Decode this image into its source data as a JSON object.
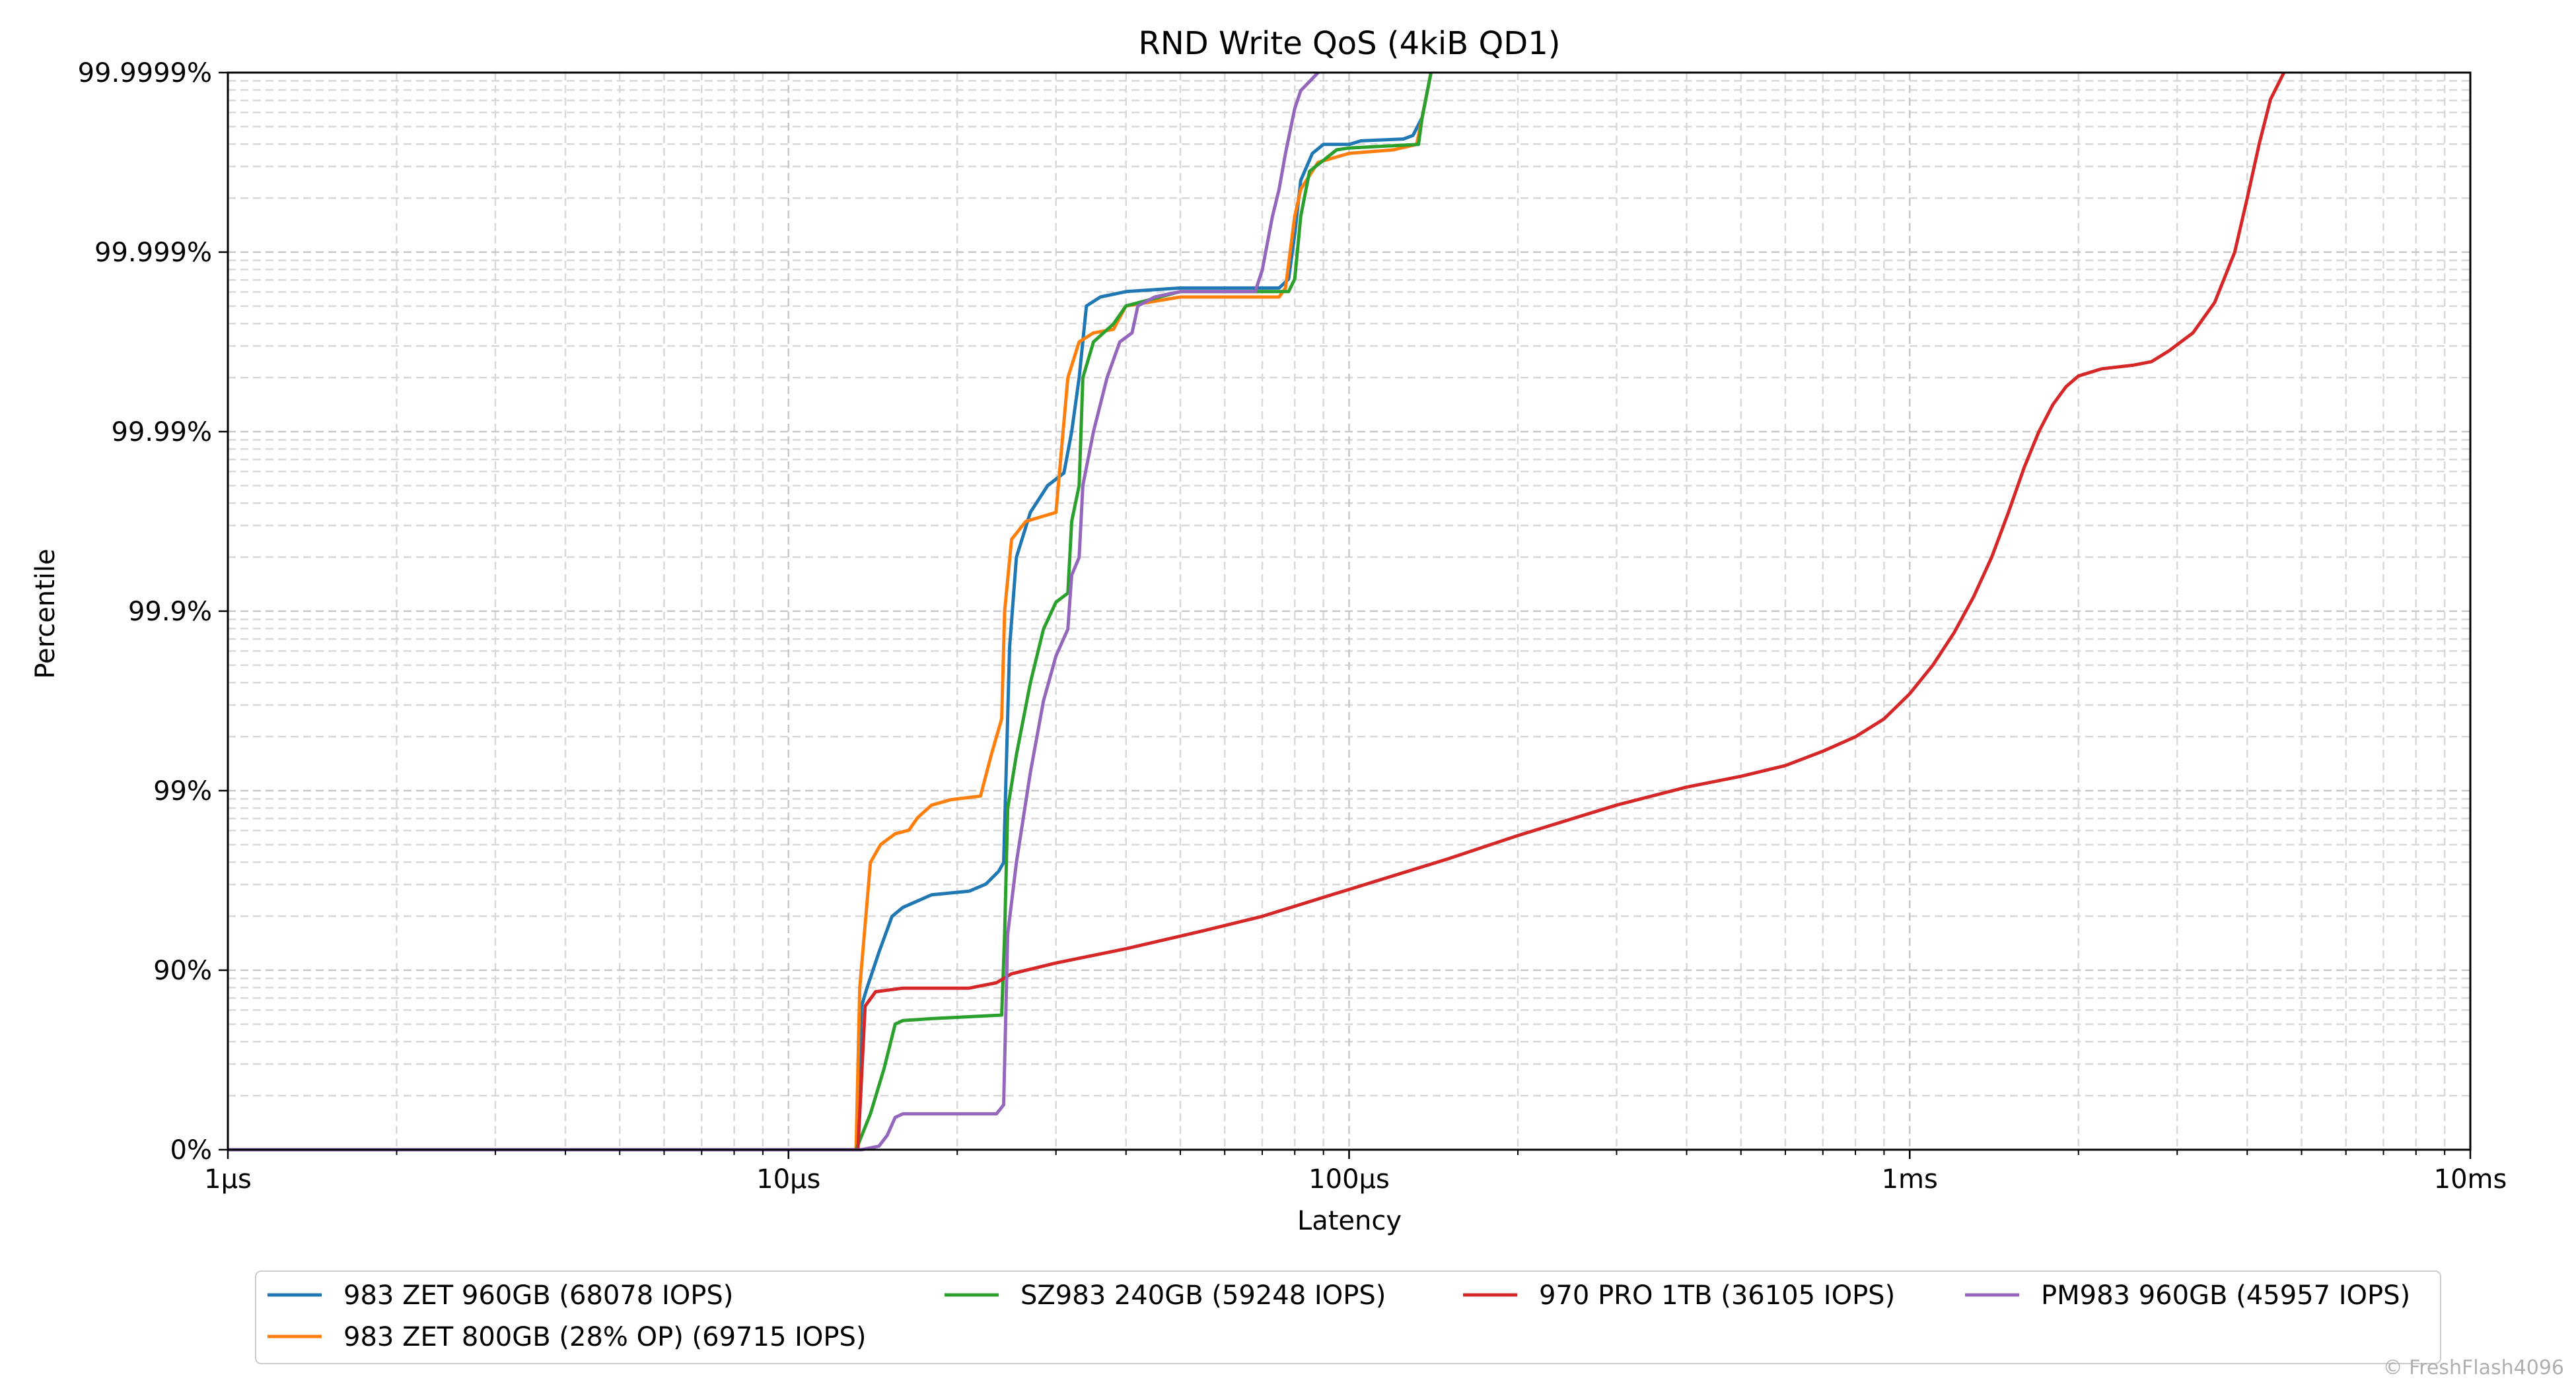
{
  "chart_data": {
    "type": "line",
    "title": "RND Write QoS (4kiB QD1)",
    "xlabel": "Latency",
    "ylabel": "Percentile",
    "x_scale": "log",
    "y_scale": "nines",
    "xlim_us": [
      1,
      10000
    ],
    "ylim_nines": [
      0,
      6
    ],
    "grid": true,
    "legend_placement": "bottom",
    "x_ticks": [
      {
        "value_us": 1,
        "label": "1µs"
      },
      {
        "value_us": 10,
        "label": "10µs"
      },
      {
        "value_us": 100,
        "label": "100µs"
      },
      {
        "value_us": 1000,
        "label": "1ms"
      },
      {
        "value_us": 10000,
        "label": "10ms"
      }
    ],
    "y_ticks": [
      {
        "nines": 0,
        "label": "0%"
      },
      {
        "nines": 1,
        "label": "90%"
      },
      {
        "nines": 2,
        "label": "99%"
      },
      {
        "nines": 3,
        "label": "99.9%"
      },
      {
        "nines": 4,
        "label": "99.99%"
      },
      {
        "nines": 5,
        "label": "99.999%"
      },
      {
        "nines": 6,
        "label": "99.9999%"
      }
    ],
    "watermark": "© FreshFlash4096",
    "series": [
      {
        "name": "983 ZET 960GB (68078 IOPS)",
        "color": "#1f77b4",
        "points": [
          [
            1,
            0
          ],
          [
            13.2,
            0
          ],
          [
            13.5,
            0.8
          ],
          [
            13.8,
            0.9
          ],
          [
            14.5,
            1.1
          ],
          [
            15.3,
            1.3
          ],
          [
            16,
            1.35
          ],
          [
            18,
            1.42
          ],
          [
            21,
            1.44
          ],
          [
            22.5,
            1.48
          ],
          [
            23.7,
            1.55
          ],
          [
            24.2,
            1.6
          ],
          [
            24.4,
            2
          ],
          [
            24.8,
            2.8
          ],
          [
            25.5,
            3.3
          ],
          [
            27,
            3.55
          ],
          [
            29,
            3.7
          ],
          [
            31,
            3.77
          ],
          [
            32,
            4.0
          ],
          [
            33,
            4.3
          ],
          [
            34,
            4.7
          ],
          [
            36,
            4.75
          ],
          [
            40,
            4.78
          ],
          [
            50,
            4.8
          ],
          [
            75,
            4.8
          ],
          [
            78,
            4.85
          ],
          [
            80,
            5.1
          ],
          [
            82,
            5.4
          ],
          [
            86,
            5.55
          ],
          [
            90,
            5.6
          ],
          [
            100,
            5.6
          ],
          [
            105,
            5.62
          ],
          [
            125,
            5.63
          ],
          [
            130,
            5.65
          ],
          [
            135,
            5.75
          ],
          [
            140,
            6.0
          ]
        ]
      },
      {
        "name": "983 ZET 800GB (28% OP) (69715 IOPS)",
        "color": "#ff7f0e",
        "points": [
          [
            1,
            0
          ],
          [
            13.2,
            0
          ],
          [
            13.4,
            0.9
          ],
          [
            14,
            1.6
          ],
          [
            14.6,
            1.7
          ],
          [
            15.5,
            1.76
          ],
          [
            16.4,
            1.78
          ],
          [
            17,
            1.85
          ],
          [
            18,
            1.92
          ],
          [
            19.5,
            1.95
          ],
          [
            22,
            1.97
          ],
          [
            23,
            2.2
          ],
          [
            24,
            2.4
          ],
          [
            24.3,
            3.0
          ],
          [
            25,
            3.4
          ],
          [
            26.5,
            3.5
          ],
          [
            30,
            3.55
          ],
          [
            31.5,
            4.3
          ],
          [
            33,
            4.5
          ],
          [
            35,
            4.55
          ],
          [
            38,
            4.57
          ],
          [
            40,
            4.7
          ],
          [
            50,
            4.75
          ],
          [
            75,
            4.75
          ],
          [
            77,
            4.8
          ],
          [
            80,
            5.2
          ],
          [
            82,
            5.35
          ],
          [
            88,
            5.5
          ],
          [
            100,
            5.55
          ],
          [
            120,
            5.57
          ],
          [
            132,
            5.6
          ],
          [
            135,
            5.75
          ],
          [
            140,
            6.0
          ]
        ]
      },
      {
        "name": "SZ983 240GB (59248 IOPS)",
        "color": "#2ca02c",
        "points": [
          [
            1,
            0
          ],
          [
            13.2,
            0
          ],
          [
            14,
            0.2
          ],
          [
            14.8,
            0.45
          ],
          [
            15.5,
            0.7
          ],
          [
            16,
            0.72
          ],
          [
            18,
            0.73
          ],
          [
            24,
            0.75
          ],
          [
            24.3,
            1.2
          ],
          [
            24.6,
            1.9
          ],
          [
            25.5,
            2.2
          ],
          [
            27,
            2.6
          ],
          [
            28.5,
            2.9
          ],
          [
            30,
            3.05
          ],
          [
            31.5,
            3.1
          ],
          [
            32,
            3.5
          ],
          [
            33,
            3.7
          ],
          [
            33.5,
            4.3
          ],
          [
            35,
            4.5
          ],
          [
            38,
            4.6
          ],
          [
            40,
            4.7
          ],
          [
            50,
            4.78
          ],
          [
            78,
            4.78
          ],
          [
            80,
            4.85
          ],
          [
            82,
            5.2
          ],
          [
            85,
            5.45
          ],
          [
            95,
            5.57
          ],
          [
            100,
            5.58
          ],
          [
            133,
            5.6
          ],
          [
            135,
            5.75
          ],
          [
            140,
            6.0
          ]
        ]
      },
      {
        "name": "970 PRO 1TB (36105 IOPS)",
        "color": "#d62728",
        "points": [
          [
            1,
            0
          ],
          [
            13.3,
            0
          ],
          [
            13.7,
            0.8
          ],
          [
            14.3,
            0.88
          ],
          [
            16,
            0.9
          ],
          [
            21,
            0.9
          ],
          [
            23.5,
            0.93
          ],
          [
            25,
            0.98
          ],
          [
            30,
            1.04
          ],
          [
            40,
            1.12
          ],
          [
            55,
            1.22
          ],
          [
            70,
            1.3
          ],
          [
            100,
            1.45
          ],
          [
            150,
            1.62
          ],
          [
            200,
            1.75
          ],
          [
            300,
            1.92
          ],
          [
            400,
            2.02
          ],
          [
            500,
            2.08
          ],
          [
            600,
            2.14
          ],
          [
            700,
            2.22
          ],
          [
            800,
            2.3
          ],
          [
            900,
            2.4
          ],
          [
            1000,
            2.54
          ],
          [
            1100,
            2.7
          ],
          [
            1200,
            2.88
          ],
          [
            1300,
            3.08
          ],
          [
            1400,
            3.3
          ],
          [
            1500,
            3.55
          ],
          [
            1600,
            3.8
          ],
          [
            1700,
            4.0
          ],
          [
            1800,
            4.15
          ],
          [
            1900,
            4.25
          ],
          [
            2000,
            4.31
          ],
          [
            2200,
            4.35
          ],
          [
            2500,
            4.37
          ],
          [
            2700,
            4.39
          ],
          [
            2900,
            4.45
          ],
          [
            3200,
            4.55
          ],
          [
            3500,
            4.72
          ],
          [
            3800,
            5.0
          ],
          [
            4000,
            5.3
          ],
          [
            4200,
            5.6
          ],
          [
            4400,
            5.85
          ],
          [
            4650,
            6.0
          ]
        ]
      },
      {
        "name": "PM983 960GB (45957 IOPS)",
        "color": "#9467bd",
        "points": [
          [
            1,
            0
          ],
          [
            13.5,
            0
          ],
          [
            14.5,
            0.02
          ],
          [
            15,
            0.08
          ],
          [
            15.5,
            0.18
          ],
          [
            16,
            0.2
          ],
          [
            23.5,
            0.2
          ],
          [
            24.2,
            0.25
          ],
          [
            24.6,
            1.2
          ],
          [
            25.5,
            1.6
          ],
          [
            27,
            2.1
          ],
          [
            28.5,
            2.5
          ],
          [
            30,
            2.75
          ],
          [
            31.5,
            2.9
          ],
          [
            32,
            3.2
          ],
          [
            33,
            3.3
          ],
          [
            33.5,
            3.7
          ],
          [
            35,
            4.0
          ],
          [
            37,
            4.3
          ],
          [
            39,
            4.5
          ],
          [
            41,
            4.55
          ],
          [
            42,
            4.7
          ],
          [
            45,
            4.75
          ],
          [
            50,
            4.78
          ],
          [
            68,
            4.78
          ],
          [
            70,
            4.9
          ],
          [
            73,
            5.2
          ],
          [
            75,
            5.35
          ],
          [
            77,
            5.55
          ],
          [
            80,
            5.8
          ],
          [
            82,
            5.9
          ],
          [
            85,
            5.95
          ],
          [
            88,
            6.0
          ]
        ]
      }
    ]
  }
}
